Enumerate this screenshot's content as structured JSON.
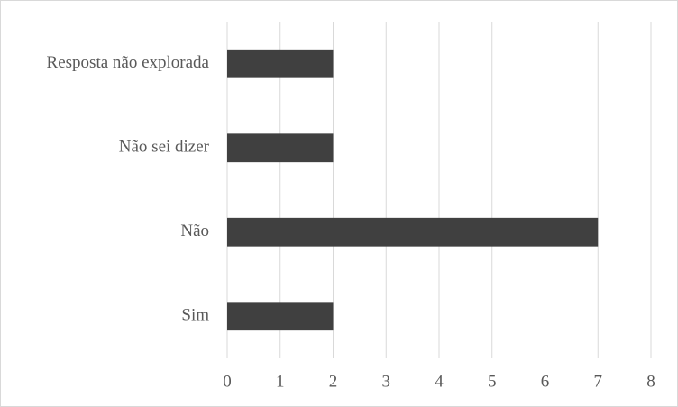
{
  "chart_data": {
    "type": "hbar",
    "categories": [
      "Resposta não explorada",
      "Não sei dizer",
      "Não",
      "Sim"
    ],
    "values": [
      2,
      2,
      7,
      2
    ],
    "color": "#404040",
    "xlim": [
      0,
      8
    ],
    "xticks": [
      0,
      1,
      2,
      3,
      4,
      5,
      6,
      7,
      8
    ],
    "grid": true
  }
}
